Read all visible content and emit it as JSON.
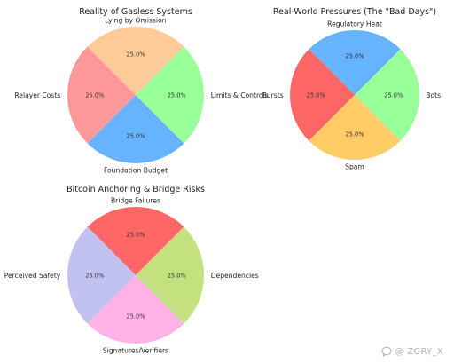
{
  "chart_data": [
    {
      "type": "pie",
      "title": "Reality of Gasless Systems",
      "categories": [
        "Lying by Omission",
        "Relayer Costs",
        "Foundation Budget",
        "Limits & Controls"
      ],
      "values": [
        25.0,
        25.0,
        25.0,
        25.0
      ],
      "value_labels": [
        "25.0%",
        "25.0%",
        "25.0%",
        "25.0%"
      ],
      "colors": [
        "#ffcc99",
        "#ff9999",
        "#66b3ff",
        "#99ff99"
      ],
      "start_angle": 45,
      "direction": "counterclockwise"
    },
    {
      "type": "pie",
      "title": "Real-World Pressures (The \"Bad Days\")",
      "categories": [
        "Regulatory Heat",
        "Bursts",
        "Spam",
        "Bots"
      ],
      "values": [
        25.0,
        25.0,
        25.0,
        25.0
      ],
      "value_labels": [
        "25.0%",
        "25.0%",
        "25.0%",
        "25.0%"
      ],
      "colors": [
        "#66b3ff",
        "#ff6666",
        "#ffcc66",
        "#99ff99"
      ],
      "start_angle": 45,
      "direction": "counterclockwise"
    },
    {
      "type": "pie",
      "title": "Bitcoin Anchoring & Bridge Risks",
      "categories": [
        "Bridge Failures",
        "Perceived Safety",
        "Signatures/Verifiers",
        "Dependencies"
      ],
      "values": [
        25.0,
        25.0,
        25.0,
        25.0
      ],
      "value_labels": [
        "25.0%",
        "25.0%",
        "25.0%",
        "25.0%"
      ],
      "colors": [
        "#ff6666",
        "#c2c2f0",
        "#ffb3e6",
        "#c4e17f"
      ],
      "start_angle": 45,
      "direction": "counterclockwise"
    }
  ],
  "watermark": {
    "text": "@ ZORY_X",
    "icon": "chat-bubble-icon",
    "color": "#b3b3b3"
  }
}
